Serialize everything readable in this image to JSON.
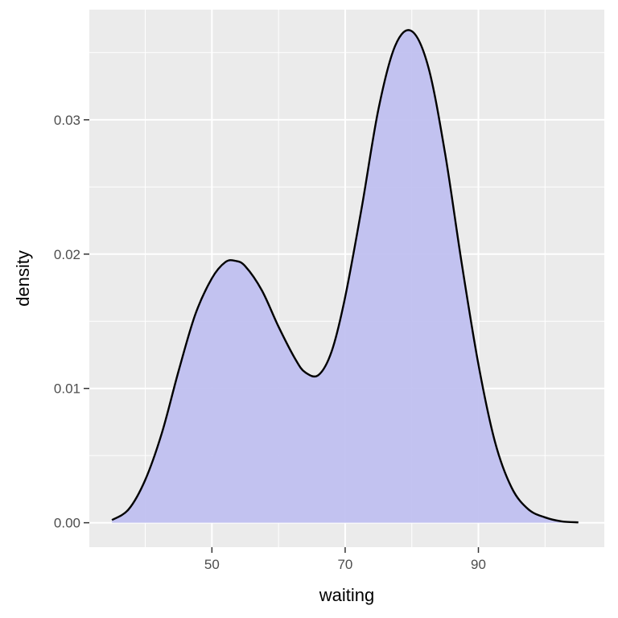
{
  "chart_data": {
    "type": "area",
    "title": "",
    "xlabel": "waiting",
    "ylabel": "density",
    "xlim": [
      31.6,
      108.9
    ],
    "ylim": [
      -0.00182,
      0.0382
    ],
    "x_ticks": [
      50,
      70,
      90
    ],
    "x_tick_labels": [
      "50",
      "70",
      "90"
    ],
    "x_minor_ticks": [
      40,
      60,
      80,
      100
    ],
    "y_ticks": [
      0.0,
      0.01,
      0.02,
      0.03
    ],
    "y_tick_labels": [
      "0.00",
      "0.01",
      "0.02",
      "0.03"
    ],
    "y_minor_ticks": [
      0.005,
      0.015,
      0.025,
      0.035
    ],
    "grid": true,
    "legend": "none",
    "colors": {
      "panel_background": "#ebebeb",
      "grid_line": "#ffffff",
      "fill": "#bebef0",
      "outline": "#000000",
      "tick_mark": "#333333"
    },
    "series": [
      {
        "x": [
          35,
          37.5,
          40,
          42.5,
          45,
          47.5,
          50,
          52,
          53.5,
          55,
          57.5,
          60,
          62.5,
          64,
          66,
          68,
          70,
          72.5,
          75,
          77.5,
          80,
          82.5,
          85,
          87.5,
          90,
          92.5,
          95,
          97.5,
          100,
          102.5,
          105
        ],
        "y": [
          0.0002,
          0.001,
          0.0032,
          0.0067,
          0.0113,
          0.0155,
          0.0182,
          0.0194,
          0.0195,
          0.0191,
          0.0173,
          0.0146,
          0.0122,
          0.0112,
          0.011,
          0.0128,
          0.0168,
          0.0235,
          0.0308,
          0.0355,
          0.0366,
          0.0339,
          0.0275,
          0.0193,
          0.0118,
          0.006,
          0.0026,
          0.001,
          0.0004,
          0.0001,
          3e-05
        ]
      }
    ]
  }
}
